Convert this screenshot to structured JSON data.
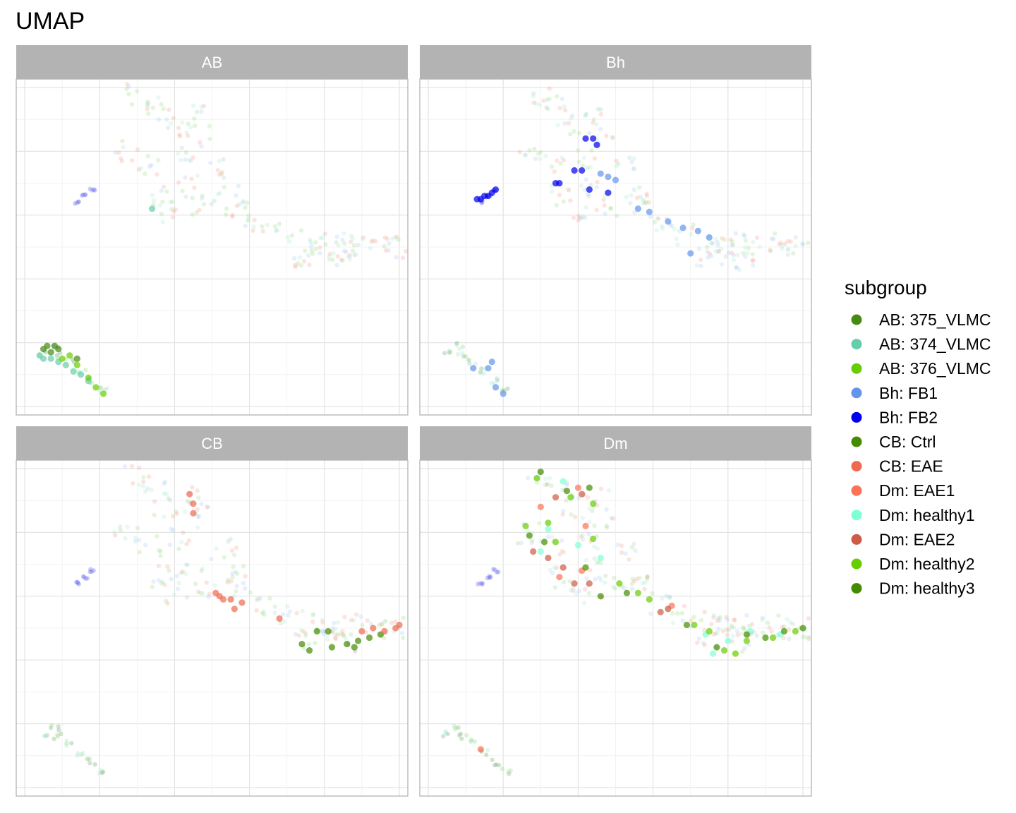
{
  "chart_data": {
    "type": "scatter",
    "title": "UMAP",
    "xlabel": "",
    "ylabel": "",
    "grid": true,
    "xlim": [
      0,
      10
    ],
    "ylim": [
      0,
      10
    ],
    "facets": [
      "AB",
      "Bh",
      "CB",
      "Dm"
    ],
    "legend": {
      "title": "subgroup",
      "position": "right",
      "entries": [
        {
          "label": "AB: 375_VLMC",
          "color": "#468a12"
        },
        {
          "label": "AB: 374_VLMC",
          "color": "#66cdaa"
        },
        {
          "label": "AB: 376_VLMC",
          "color": "#66cd00"
        },
        {
          "label": "Bh: FB1",
          "color": "#6495ed"
        },
        {
          "label": "Bh: FB2",
          "color": "#0000ee"
        },
        {
          "label": "CB: Ctrl",
          "color": "#458b00"
        },
        {
          "label": "CB: EAE",
          "color": "#ee6a50"
        },
        {
          "label": "Dm: EAE1",
          "color": "#ff7256"
        },
        {
          "label": "Dm: healthy1",
          "color": "#7fffd4"
        },
        {
          "label": "Dm: EAE2",
          "color": "#cd5b45"
        },
        {
          "label": "Dm: healthy2",
          "color": "#66cd00"
        },
        {
          "label": "Dm: healthy3",
          "color": "#458b00"
        }
      ]
    },
    "clusters": {
      "fibro": [
        [
          3.0,
          9.8
        ],
        [
          3.5,
          9.4
        ],
        [
          4.5,
          9.1
        ],
        [
          3.8,
          8.8
        ],
        [
          2.7,
          8.0
        ],
        [
          3.3,
          7.6
        ],
        [
          4.2,
          7.8
        ],
        [
          4.6,
          8.5
        ],
        [
          5.3,
          7.5
        ],
        [
          4.4,
          6.9
        ],
        [
          3.6,
          6.6
        ],
        [
          4.8,
          6.3
        ],
        [
          4.0,
          6.1
        ],
        [
          5.5,
          6.6
        ],
        [
          5.7,
          6.3
        ],
        [
          6.2,
          5.7
        ],
        [
          6.8,
          5.4
        ],
        [
          7.6,
          5.2
        ],
        [
          8.2,
          5.1
        ],
        [
          7.8,
          5.0
        ],
        [
          8.5,
          4.6
        ],
        [
          7.5,
          4.7
        ],
        [
          9.0,
          5.1
        ],
        [
          9.6,
          5.0
        ],
        [
          8.4,
          4.9
        ],
        [
          9.9,
          5.0
        ]
      ],
      "blue_small": [
        [
          1.4,
          6.4
        ],
        [
          1.6,
          6.6
        ],
        [
          1.8,
          6.8
        ]
      ],
      "bottom": [
        [
          0.5,
          1.7
        ],
        [
          0.8,
          1.9
        ],
        [
          0.9,
          1.6
        ],
        [
          1.2,
          1.4
        ],
        [
          1.5,
          1.1
        ],
        [
          1.8,
          0.8
        ],
        [
          2.1,
          0.5
        ]
      ]
    },
    "series": [
      {
        "name": "AB: 375_VLMC",
        "facet": "AB",
        "values": [
          [
            0.6,
            1.9
          ],
          [
            0.8,
            1.9
          ],
          [
            0.9,
            1.8
          ],
          [
            0.7,
            1.7
          ],
          [
            0.5,
            1.8
          ],
          [
            1.4,
            1.5
          ]
        ]
      },
      {
        "name": "AB: 374_VLMC",
        "facet": "AB",
        "values": [
          [
            0.4,
            1.6
          ],
          [
            0.5,
            1.5
          ],
          [
            0.7,
            1.5
          ],
          [
            0.9,
            1.4
          ],
          [
            1.1,
            1.3
          ],
          [
            1.3,
            1.1
          ],
          [
            1.5,
            1.0
          ],
          [
            1.7,
            0.8
          ],
          [
            3.4,
            6.2
          ]
        ]
      },
      {
        "name": "AB: 376_VLMC",
        "facet": "AB",
        "values": [
          [
            1.0,
            1.5
          ],
          [
            1.4,
            1.3
          ],
          [
            1.7,
            0.9
          ],
          [
            1.9,
            0.6
          ],
          [
            2.1,
            0.4
          ],
          [
            1.2,
            1.6
          ]
        ]
      },
      {
        "name": "Bh: FB1",
        "facet": "Bh",
        "values": [
          [
            4.6,
            7.3
          ],
          [
            4.8,
            7.2
          ],
          [
            5.0,
            7.1
          ],
          [
            5.6,
            6.2
          ],
          [
            5.9,
            6.1
          ],
          [
            6.4,
            5.8
          ],
          [
            6.8,
            5.6
          ],
          [
            7.2,
            5.5
          ],
          [
            7.5,
            5.3
          ],
          [
            7.0,
            4.8
          ],
          [
            1.6,
            1.2
          ],
          [
            1.7,
            1.4
          ],
          [
            1.2,
            1.2
          ],
          [
            1.8,
            0.6
          ],
          [
            2.0,
            0.4
          ]
        ]
      },
      {
        "name": "Bh: FB2",
        "facet": "Bh",
        "values": [
          [
            1.3,
            6.5
          ],
          [
            1.4,
            6.5
          ],
          [
            1.5,
            6.6
          ],
          [
            1.6,
            6.6
          ],
          [
            1.7,
            6.7
          ],
          [
            1.8,
            6.8
          ],
          [
            4.2,
            8.4
          ],
          [
            4.4,
            8.4
          ],
          [
            4.5,
            8.2
          ],
          [
            3.9,
            7.4
          ],
          [
            4.1,
            7.4
          ],
          [
            3.4,
            7.0
          ],
          [
            4.3,
            6.8
          ],
          [
            4.8,
            6.7
          ],
          [
            3.5,
            7.0
          ]
        ]
      },
      {
        "name": "CB: Ctrl",
        "facet": "CB",
        "values": [
          [
            7.8,
            4.9
          ],
          [
            8.1,
            4.9
          ],
          [
            7.4,
            4.5
          ],
          [
            7.6,
            4.3
          ],
          [
            8.2,
            4.4
          ],
          [
            8.6,
            4.5
          ],
          [
            8.9,
            4.6
          ],
          [
            9.2,
            4.7
          ],
          [
            8.8,
            4.4
          ],
          [
            9.5,
            4.8
          ]
        ]
      },
      {
        "name": "CB: EAE",
        "facet": "CB",
        "values": [
          [
            4.4,
            9.2
          ],
          [
            4.5,
            8.9
          ],
          [
            4.5,
            8.6
          ],
          [
            5.1,
            6.1
          ],
          [
            5.3,
            5.9
          ],
          [
            5.5,
            5.9
          ],
          [
            5.8,
            5.8
          ],
          [
            5.6,
            5.6
          ],
          [
            5.2,
            6.0
          ],
          [
            6.8,
            5.3
          ],
          [
            9.0,
            4.9
          ],
          [
            9.3,
            5.0
          ],
          [
            9.6,
            4.9
          ],
          [
            9.9,
            5.0
          ],
          [
            10.0,
            5.1
          ]
        ]
      },
      {
        "name": "Dm: EAE1",
        "facet": "Dm",
        "values": [
          [
            1.4,
            1.2
          ],
          [
            4.0,
            9.4
          ],
          [
            3.0,
            8.8
          ],
          [
            4.2,
            8.2
          ],
          [
            3.5,
            6.6
          ],
          [
            4.1,
            6.8
          ],
          [
            6.5,
            5.7
          ]
        ]
      },
      {
        "name": "Dm: healthy1",
        "facet": "Dm",
        "values": [
          [
            3.6,
            9.6
          ],
          [
            3.2,
            8.1
          ],
          [
            4.0,
            7.6
          ],
          [
            4.6,
            7.2
          ],
          [
            7.4,
            4.8
          ],
          [
            7.6,
            4.2
          ],
          [
            8.0,
            4.6
          ],
          [
            8.6,
            4.9
          ],
          [
            9.4,
            4.8
          ],
          [
            3.0,
            7.4
          ]
        ]
      },
      {
        "name": "Dm: EAE2",
        "facet": "Dm",
        "values": [
          [
            3.4,
            9.1
          ],
          [
            4.1,
            9.2
          ],
          [
            2.8,
            7.4
          ],
          [
            3.2,
            7.2
          ],
          [
            3.6,
            6.9
          ],
          [
            3.9,
            6.4
          ],
          [
            4.3,
            6.4
          ],
          [
            6.2,
            5.5
          ],
          [
            6.4,
            5.6
          ]
        ]
      },
      {
        "name": "Dm: healthy2",
        "facet": "Dm",
        "values": [
          [
            2.9,
            9.7
          ],
          [
            3.8,
            9.1
          ],
          [
            4.4,
            8.9
          ],
          [
            2.6,
            8.2
          ],
          [
            3.2,
            8.3
          ],
          [
            4.4,
            7.8
          ],
          [
            3.4,
            7.7
          ],
          [
            5.1,
            6.4
          ],
          [
            5.6,
            6.1
          ],
          [
            5.9,
            5.9
          ],
          [
            7.1,
            5.1
          ],
          [
            7.5,
            4.9
          ],
          [
            7.9,
            4.3
          ],
          [
            8.2,
            4.2
          ],
          [
            8.5,
            4.6
          ],
          [
            9.2,
            4.7
          ],
          [
            9.8,
            4.9
          ]
        ]
      },
      {
        "name": "Dm: healthy3",
        "facet": "Dm",
        "values": [
          [
            3.0,
            9.9
          ],
          [
            3.7,
            9.3
          ],
          [
            4.3,
            9.4
          ],
          [
            3.1,
            7.7
          ],
          [
            2.7,
            7.9
          ],
          [
            4.2,
            6.9
          ],
          [
            4.6,
            6.0
          ],
          [
            5.3,
            6.1
          ],
          [
            6.9,
            5.1
          ],
          [
            7.7,
            4.4
          ],
          [
            8.5,
            4.8
          ],
          [
            9.0,
            4.7
          ],
          [
            9.5,
            4.9
          ],
          [
            10.0,
            5.0
          ]
        ]
      }
    ]
  }
}
